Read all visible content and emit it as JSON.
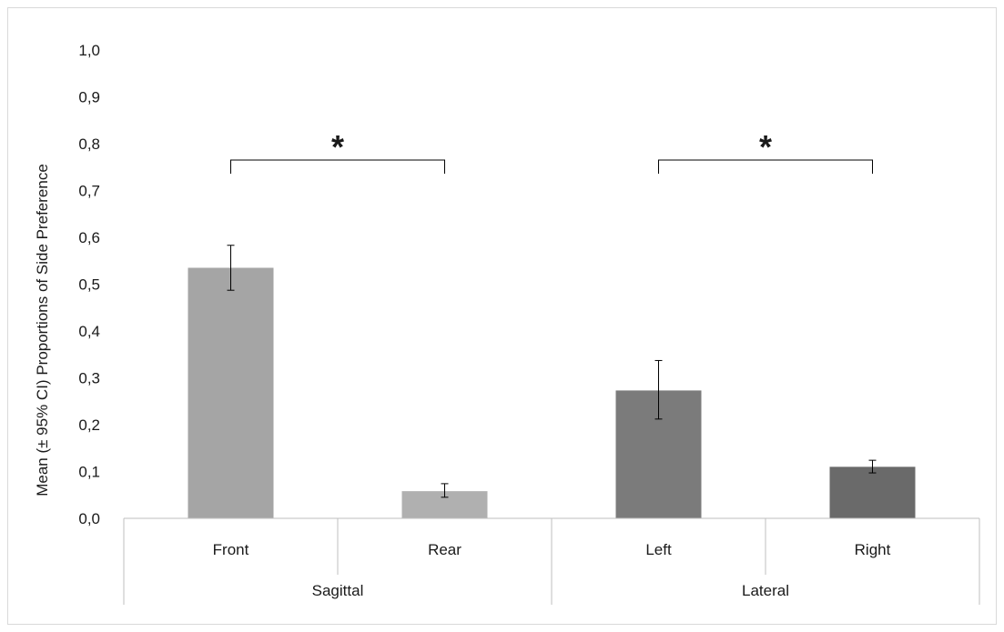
{
  "chart_data": {
    "type": "bar",
    "title": "",
    "xlabel": "",
    "ylabel": "Mean (± 95% CI) Proportions of Side Preference",
    "ylim": [
      0,
      1.0
    ],
    "ytick_step": 0.1,
    "ytick_decimal_separator": ",",
    "grid": false,
    "legend": "none",
    "categories": [
      "Front",
      "Rear",
      "Left",
      "Right"
    ],
    "groups": [
      {
        "name": "Sagittal",
        "categories": [
          "Front",
          "Rear"
        ]
      },
      {
        "name": "Lateral",
        "categories": [
          "Left",
          "Right"
        ]
      }
    ],
    "values": [
      0.535,
      0.058,
      0.273,
      0.11
    ],
    "ci_lower": [
      0.487,
      0.045,
      0.212,
      0.097
    ],
    "ci_upper": [
      0.583,
      0.074,
      0.337,
      0.124
    ],
    "bar_colors": [
      "#a5a5a5",
      "#b0b0b0",
      "#7b7b7b",
      "#6a6a6a"
    ],
    "annotations": [
      {
        "type": "significance-bracket",
        "text": "*",
        "from": "Front",
        "to": "Rear",
        "y": 0.765
      },
      {
        "type": "significance-bracket",
        "text": "*",
        "from": "Left",
        "to": "Right",
        "y": 0.765
      }
    ]
  }
}
